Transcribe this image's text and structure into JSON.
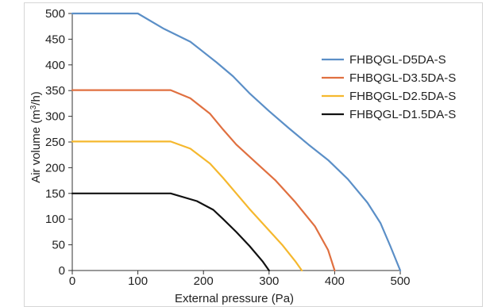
{
  "chart_data": {
    "type": "line",
    "title": "",
    "xlabel": "External pressure (Pa)",
    "ylabel_parts": {
      "main": "Air volume (m",
      "sup": "3",
      "tail": "/h)"
    },
    "xlim": [
      0,
      500
    ],
    "ylim": [
      0,
      500
    ],
    "x_ticks": [
      0,
      100,
      200,
      300,
      400,
      500
    ],
    "y_ticks": [
      0,
      50,
      100,
      150,
      200,
      250,
      300,
      350,
      400,
      450,
      500
    ],
    "grid": false,
    "legend_position": "right",
    "series": [
      {
        "name": "FHBQGL-D5DA-S",
        "color": "#5b8fc7",
        "points": [
          [
            0,
            500
          ],
          [
            100,
            500
          ],
          [
            140,
            470
          ],
          [
            180,
            445
          ],
          [
            220,
            405
          ],
          [
            245,
            378
          ],
          [
            270,
            345
          ],
          [
            300,
            310
          ],
          [
            330,
            277
          ],
          [
            360,
            245
          ],
          [
            390,
            215
          ],
          [
            420,
            178
          ],
          [
            450,
            132
          ],
          [
            470,
            92
          ],
          [
            485,
            47
          ],
          [
            500,
            0
          ]
        ]
      },
      {
        "name": "FHBQGL-D3.5DA-S",
        "color": "#e07040",
        "points": [
          [
            0,
            351
          ],
          [
            100,
            351
          ],
          [
            150,
            351
          ],
          [
            180,
            335
          ],
          [
            210,
            305
          ],
          [
            230,
            274
          ],
          [
            250,
            245
          ],
          [
            280,
            210
          ],
          [
            310,
            175
          ],
          [
            340,
            133
          ],
          [
            370,
            86
          ],
          [
            390,
            40
          ],
          [
            400,
            0
          ]
        ]
      },
      {
        "name": "FHBQGL-D2.5DA-S",
        "color": "#f5b82e",
        "points": [
          [
            0,
            251
          ],
          [
            100,
            251
          ],
          [
            150,
            251
          ],
          [
            180,
            237
          ],
          [
            210,
            208
          ],
          [
            230,
            180
          ],
          [
            250,
            150
          ],
          [
            270,
            120
          ],
          [
            300,
            78
          ],
          [
            320,
            50
          ],
          [
            340,
            18
          ],
          [
            350,
            0
          ]
        ]
      },
      {
        "name": "FHBQGL-D1.5DA-S",
        "color": "#111111",
        "points": [
          [
            0,
            150
          ],
          [
            100,
            150
          ],
          [
            150,
            150
          ],
          [
            190,
            135
          ],
          [
            215,
            118
          ],
          [
            230,
            100
          ],
          [
            250,
            75
          ],
          [
            270,
            48
          ],
          [
            290,
            18
          ],
          [
            300,
            0
          ]
        ]
      }
    ]
  }
}
